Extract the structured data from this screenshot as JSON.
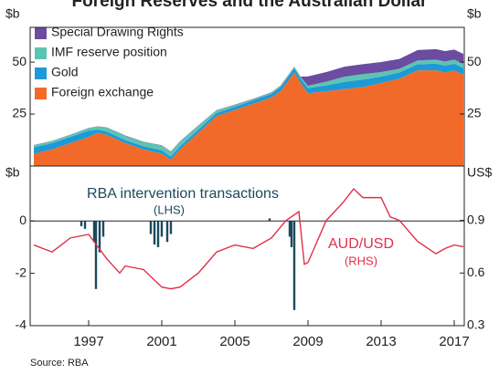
{
  "title": "Foreign Reserves and the Australian Dollar",
  "source": "Source:   RBA",
  "chart_data": [
    {
      "type": "area",
      "unit_left": "$b",
      "unit_right": "$b",
      "legend": "top-left",
      "xlim": [
        1993.8,
        2017.55
      ],
      "ylim": [
        0,
        66.7
      ],
      "yticks": [
        25,
        50
      ],
      "x": [
        1994,
        1995,
        1996,
        1997,
        1997.5,
        1998,
        1999,
        2000,
        2001,
        2001.5,
        2002,
        2003,
        2004,
        2005,
        2006,
        2007,
        2007.5,
        2008.25,
        2008.6,
        2009,
        2010,
        2011,
        2012,
        2013,
        2014,
        2015,
        2016,
        2016.5,
        2017,
        2017.5
      ],
      "series": [
        {
          "name": "Foreign exchange",
          "color": "#f26a2a",
          "values": [
            6,
            8,
            11,
            14,
            16,
            15,
            11,
            8,
            6,
            3,
            8,
            16,
            24,
            27,
            30,
            33,
            36,
            45,
            40,
            35,
            36,
            37,
            38,
            40,
            42,
            46,
            46,
            45,
            46,
            44
          ]
        },
        {
          "name": "Gold",
          "color": "#1c9ad6",
          "values": [
            3,
            3,
            3,
            3,
            1.5,
            1.5,
            1.5,
            1.5,
            1.5,
            1.5,
            1.5,
            1.5,
            1.5,
            1.5,
            1.6,
            1.8,
            2,
            2,
            2,
            2.4,
            2.8,
            3.5,
            3.6,
            3,
            3,
            3,
            3.2,
            3.3,
            3.2,
            3.2
          ]
        },
        {
          "name": "IMF reserve position",
          "color": "#5cc4b4",
          "values": [
            1,
            1,
            1,
            1.2,
            1.5,
            2,
            2,
            2,
            2.3,
            2.3,
            2.2,
            1.8,
            1.2,
            0.8,
            0.5,
            0.5,
            0.5,
            0.6,
            0.8,
            1.2,
            1.8,
            2.5,
            2.6,
            2.2,
            1.8,
            1.8,
            2,
            2,
            2,
            2
          ]
        },
        {
          "name": "Special Drawing Rights",
          "color": "#6b4ca0",
          "values": [
            0.1,
            0.1,
            0.1,
            0.1,
            0.1,
            0.1,
            0.2,
            0.2,
            0.2,
            0.2,
            0.2,
            0.2,
            0.2,
            0.2,
            0.2,
            0.2,
            0.2,
            0.2,
            0.2,
            4.5,
            4.6,
            4.8,
            4.8,
            4.8,
            4.7,
            5,
            5,
            5,
            4.8,
            4.8
          ]
        }
      ]
    },
    {
      "type": "combo",
      "unit_left": "$b",
      "unit_right": "US$",
      "xlim": [
        1993.8,
        2017.55
      ],
      "ylim": [
        -4,
        2.1
      ],
      "yticks": [
        0,
        -2,
        -4
      ],
      "y2lim": [
        0.3,
        1.21
      ],
      "y2ticks": [
        0.3,
        0.6,
        0.9
      ],
      "xticks": [
        1997,
        2001,
        2005,
        2009,
        2013,
        2017
      ],
      "series": [
        {
          "name": "RBA intervention transactions",
          "annotation": "(LHS)",
          "type": "bar",
          "color": "#1a4a5c",
          "x": [
            1996.6,
            1996.8,
            1997.3,
            1997.4,
            1997.6,
            1997.8,
            2000.4,
            2000.6,
            2000.8,
            2001.0,
            2001.3,
            2001.5,
            2006.9,
            2008.0,
            2008.1,
            2008.25
          ],
          "values": [
            -0.2,
            -0.3,
            -0.8,
            -2.6,
            -1.2,
            -0.6,
            -0.5,
            -0.9,
            -1.0,
            -0.6,
            -0.8,
            -0.5,
            0.1,
            -0.6,
            -1.0,
            -3.4
          ]
        },
        {
          "name": "AUD/USD",
          "annotation": "(RHS)",
          "type": "line",
          "axis": "y2",
          "color": "#e0304a",
          "x": [
            1994,
            1995,
            1996,
            1997,
            1997.5,
            1998,
            1998.7,
            1999,
            2000,
            2001,
            2001.5,
            2002,
            2003,
            2004,
            2005,
            2006,
            2007,
            2007.8,
            2008.5,
            2008.8,
            2009,
            2010,
            2010.9,
            2011.5,
            2012,
            2013,
            2013.5,
            2014,
            2015,
            2016,
            2016.5,
            2017,
            2017.5
          ],
          "values": [
            0.76,
            0.72,
            0.8,
            0.82,
            0.75,
            0.68,
            0.6,
            0.64,
            0.62,
            0.52,
            0.51,
            0.52,
            0.6,
            0.72,
            0.76,
            0.74,
            0.8,
            0.9,
            0.95,
            0.65,
            0.66,
            0.9,
            1.0,
            1.08,
            1.03,
            1.03,
            0.92,
            0.9,
            0.78,
            0.71,
            0.74,
            0.76,
            0.75
          ]
        }
      ]
    }
  ]
}
